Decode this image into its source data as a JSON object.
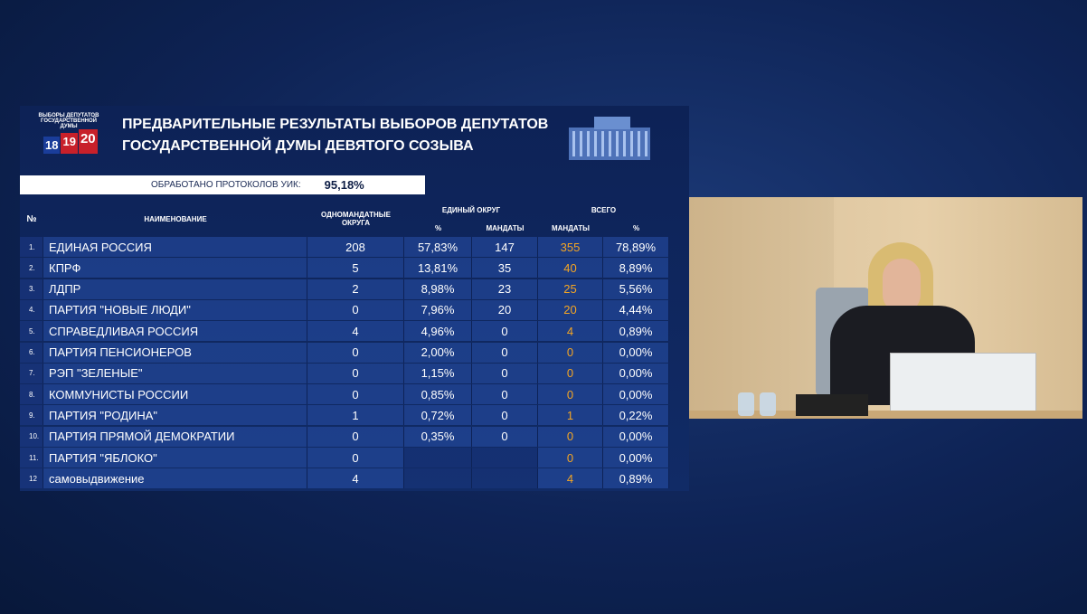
{
  "logo": {
    "line1": "ВЫБОРЫ ДЕПУТАТОВ",
    "line2": "ГОСУДАРСТВЕННОЙ ДУМЫ",
    "years": [
      "18",
      "19",
      "20"
    ]
  },
  "header": {
    "title_line1": "ПРЕДВАРИТЕЛЬНЫЕ РЕЗУЛЬТАТЫ ВЫБОРОВ ДЕПУТАТОВ",
    "title_line2": "ГОСУДАРСТВЕННОЙ ДУМЫ ДЕВЯТОГО СОЗЫВА"
  },
  "progress": {
    "label": "ОБРАБОТАНО ПРОТОКОЛОВ УИК:",
    "value": "95,18%"
  },
  "table": {
    "columns": {
      "num": "№",
      "name": "НАИМЕНОВАНИЕ",
      "single": "ОДНОМАНДАТНЫЕ ОКРУГА",
      "unified": "ЕДИНЫЙ ОКРУГ",
      "unified_pct": "%",
      "unified_mandates": "МАНДАТЫ",
      "total": "ВСЕГО",
      "total_mandates": "МАНДАТЫ",
      "total_pct": "%"
    },
    "rows": [
      [
        "1.",
        "ЕДИНАЯ РОССИЯ",
        "208",
        "57,83%",
        "147",
        "355",
        "78,89%"
      ],
      [
        "2.",
        "КПРФ",
        "5",
        "13,81%",
        "35",
        "40",
        "8,89%"
      ],
      [
        "3.",
        "ЛДПР",
        "2",
        "8,98%",
        "23",
        "25",
        "5,56%"
      ],
      [
        "4.",
        "ПАРТИЯ \"НОВЫЕ ЛЮДИ\"",
        "0",
        "7,96%",
        "20",
        "20",
        "4,44%"
      ],
      [
        "5.",
        "СПРАВЕДЛИВАЯ РОССИЯ",
        "4",
        "4,96%",
        "0",
        "4",
        "0,89%"
      ],
      [
        "6.",
        "ПАРТИЯ ПЕНСИОНЕРОВ",
        "0",
        "2,00%",
        "0",
        "0",
        "0,00%"
      ],
      [
        "7.",
        "РЭП \"ЗЕЛЕНЫЕ\"",
        "0",
        "1,15%",
        "0",
        "0",
        "0,00%"
      ],
      [
        "8.",
        "КОММУНИСТЫ РОССИИ",
        "0",
        "0,85%",
        "0",
        "0",
        "0,00%"
      ],
      [
        "9.",
        "ПАРТИЯ \"РОДИНА\"",
        "1",
        "0,72%",
        "0",
        "1",
        "0,22%"
      ],
      [
        "10.",
        "ПАРТИЯ ПРЯМОЙ ДЕМОКРАТИИ",
        "0",
        "0,35%",
        "0",
        "0",
        "0,00%"
      ],
      [
        "11.",
        "ПАРТИЯ \"ЯБЛОКО\"",
        "0",
        null,
        null,
        "0",
        "0,00%"
      ],
      [
        "12",
        "самовыдвижение",
        "4",
        null,
        null,
        "4",
        "0,89%"
      ]
    ]
  }
}
